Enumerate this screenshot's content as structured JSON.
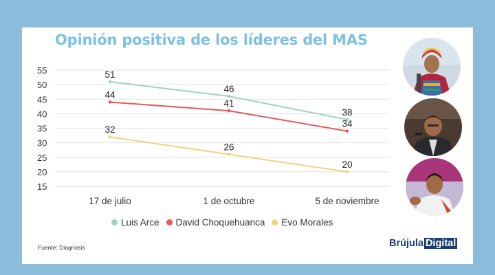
{
  "title": "Opinión positiva de los líderes del MAS",
  "chart_data": {
    "type": "line",
    "categories": [
      "17 de julio",
      "1 de octubre",
      "5 de noviembre"
    ],
    "y_ticks": [
      55,
      50,
      45,
      40,
      35,
      30,
      25,
      20,
      15
    ],
    "ylim": [
      15,
      55
    ],
    "grid": true,
    "legend_position": "bottom",
    "series": [
      {
        "name": "Luis Arce",
        "color": "#9dd4bb",
        "values": [
          51,
          46,
          38
        ]
      },
      {
        "name": "David Choquehuanca",
        "color": "#e45a5a",
        "values": [
          44,
          41,
          34
        ]
      },
      {
        "name": "Evo Morales",
        "color": "#f2d27a",
        "values": [
          32,
          26,
          20
        ]
      }
    ]
  },
  "source": "Fuente: Diagnosis",
  "brand": {
    "part1": "Brújula",
    "part2": "Digital"
  },
  "portraits": [
    "photo-arce",
    "photo-choquehuanca",
    "photo-morales"
  ]
}
